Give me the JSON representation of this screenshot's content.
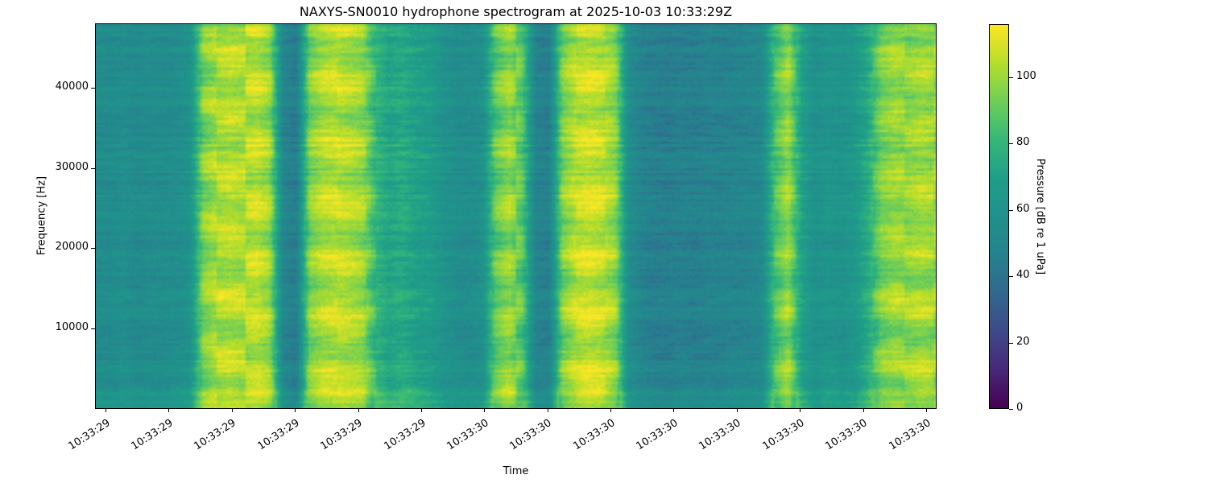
{
  "chart_data": {
    "type": "heatmap",
    "variant": "spectrogram",
    "title": "NAXYS-SN0010 hydrophone spectrogram at 2025-10-03 10:33:29Z",
    "xlabel": "Time",
    "ylabel": "Frequency [Hz]",
    "x_tick_labels": [
      "10:33:29",
      "10:33:29",
      "10:33:29",
      "10:33:29",
      "10:33:29",
      "10:33:29",
      "10:33:30",
      "10:33:30",
      "10:33:30",
      "10:33:30",
      "10:33:30",
      "10:33:30",
      "10:33:30",
      "10:33:30"
    ],
    "y_ticks": [
      10000,
      20000,
      30000,
      40000
    ],
    "y_range_hz": [
      0,
      48000
    ],
    "colorbar": {
      "label": "Pressure [dB re 1 uPa]",
      "ticks": [
        0,
        20,
        40,
        60,
        80,
        100
      ],
      "range": [
        0,
        116
      ],
      "colormap": "viridis"
    },
    "time_profile_db": [
      55,
      54,
      56,
      53,
      55,
      54,
      56,
      60,
      95,
      102,
      105,
      103,
      106,
      100,
      50,
      44,
      95,
      104,
      106,
      103,
      100,
      80,
      72,
      75,
      70,
      68,
      60,
      56,
      55,
      58,
      90,
      100,
      88,
      48,
      46,
      95,
      105,
      108,
      106,
      98,
      55,
      48,
      46,
      45,
      47,
      46,
      48,
      47,
      49,
      50,
      52,
      85,
      100,
      70,
      58,
      62,
      60,
      64,
      75,
      95,
      100,
      98,
      102,
      100
    ]
  },
  "colors": {
    "viridis_stops": [
      "#440154",
      "#482878",
      "#3e4989",
      "#31688e",
      "#26828e",
      "#21918c",
      "#1f9e89",
      "#35b779",
      "#6ece58",
      "#b5de2b",
      "#fde725"
    ],
    "text": "#000000",
    "background": "#ffffff"
  }
}
